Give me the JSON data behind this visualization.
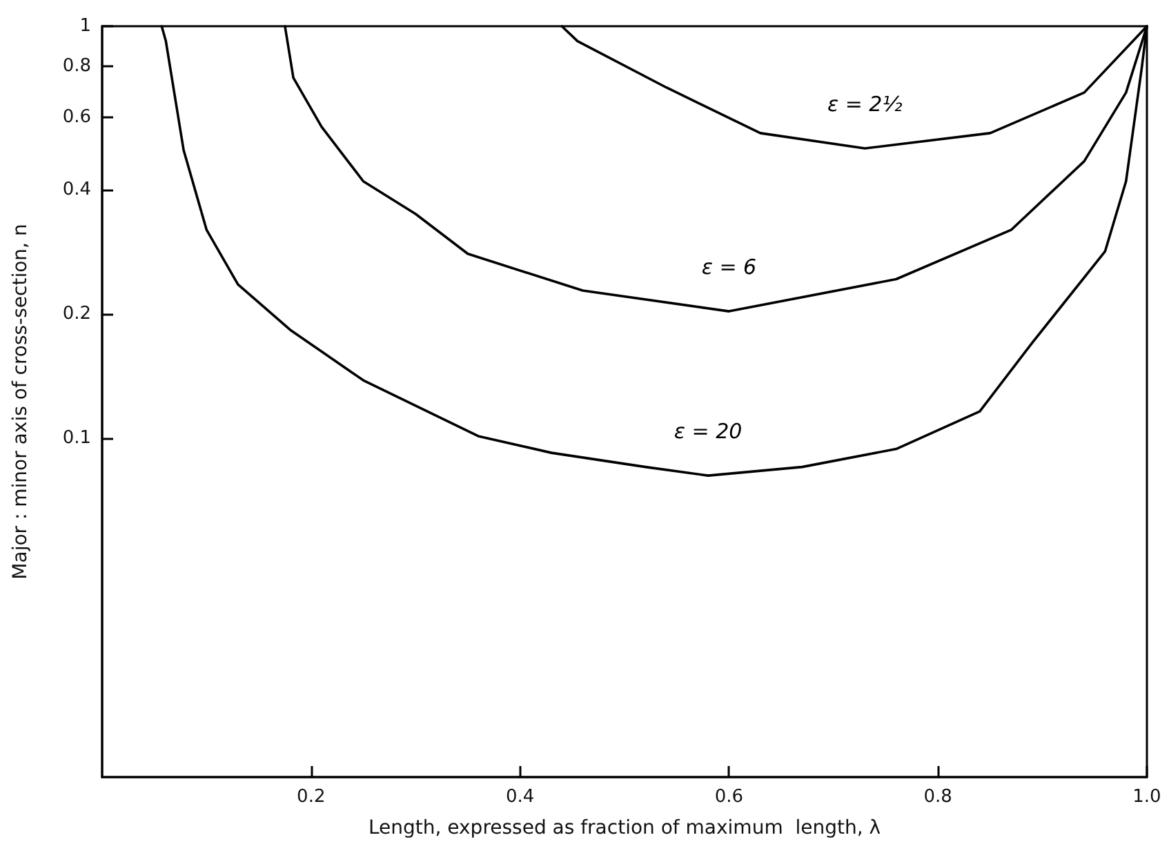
{
  "chart_data": {
    "type": "line",
    "xlabel": "Length, expressed as fraction of maximum  length, λ",
    "ylabel": "Major : minor axis of cross-section, n",
    "log": "y",
    "grid": false,
    "marker": "none",
    "line_style": "solid",
    "xlim": [
      0,
      1
    ],
    "xticks": [
      0.2,
      0.4,
      0.6,
      0.8,
      {
        "value": 1,
        "label": "1.0"
      }
    ],
    "ylim": [
      0.015,
      1
    ],
    "yticks": [
      0.1,
      0.2,
      0.4,
      0.6,
      0.8,
      1
    ],
    "series": [
      {
        "name": "ε = 2½",
        "color": "#000000",
        "x": [
          0.44,
          0.455,
          0.54,
          0.63,
          0.73,
          0.85,
          0.94,
          1
        ],
        "values": [
          1,
          0.92,
          0.71,
          0.55,
          0.505,
          0.55,
          0.69,
          1
        ]
      },
      {
        "name": "ε = 6",
        "color": "#000000",
        "x": [
          0.175,
          0.183,
          0.21,
          0.25,
          0.3,
          0.35,
          0.46,
          0.6,
          0.76,
          0.87,
          0.94,
          0.98,
          1
        ],
        "values": [
          1,
          0.75,
          0.57,
          0.42,
          0.35,
          0.28,
          0.228,
          0.203,
          0.243,
          0.32,
          0.47,
          0.69,
          1
        ]
      },
      {
        "name": "ε = 20",
        "color": "#000000",
        "x": [
          0.057,
          0.061,
          0.078,
          0.1,
          0.13,
          0.18,
          0.25,
          0.36,
          0.43,
          0.52,
          0.58,
          0.67,
          0.76,
          0.84,
          0.89,
          0.96,
          0.98,
          0.995,
          1
        ],
        "values": [
          1,
          0.92,
          0.5,
          0.32,
          0.236,
          0.183,
          0.138,
          0.101,
          0.092,
          0.085,
          0.081,
          0.085,
          0.094,
          0.116,
          0.17,
          0.284,
          0.42,
          0.79,
          1
        ]
      }
    ]
  }
}
